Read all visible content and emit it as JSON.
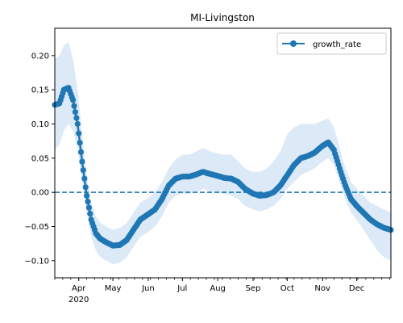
{
  "chart_data": {
    "type": "line",
    "title": "MI-Livingston",
    "xlabel": "",
    "ylabel": "",
    "legend": {
      "position": "top-right",
      "entries": [
        "growth_rate"
      ]
    },
    "grid": false,
    "xlim": [
      "2020-03-11",
      "2020-12-31"
    ],
    "ylim": [
      -0.125,
      0.24
    ],
    "x_ticks": [
      {
        "date": "2020-04-01",
        "label": "Apr",
        "sublabel": "2020"
      },
      {
        "date": "2020-05-01",
        "label": "May"
      },
      {
        "date": "2020-06-01",
        "label": "Jun"
      },
      {
        "date": "2020-07-01",
        "label": "Jul"
      },
      {
        "date": "2020-08-01",
        "label": "Aug"
      },
      {
        "date": "2020-09-01",
        "label": "Sep"
      },
      {
        "date": "2020-10-01",
        "label": "Oct"
      },
      {
        "date": "2020-11-01",
        "label": "Nov"
      },
      {
        "date": "2020-12-01",
        "label": "Dec"
      }
    ],
    "y_ticks": [
      {
        "value": 0.2,
        "label": "0.20"
      },
      {
        "value": 0.15,
        "label": "0.15"
      },
      {
        "value": 0.1,
        "label": "0.10"
      },
      {
        "value": 0.05,
        "label": "0.05"
      },
      {
        "value": 0.0,
        "label": "0.00"
      },
      {
        "value": -0.05,
        "label": "−0.05"
      },
      {
        "value": -0.1,
        "label": "−0.10"
      }
    ],
    "reference_line": {
      "y": 0.0,
      "style": "dashed",
      "color": "#1f77b4"
    },
    "series": [
      {
        "name": "growth_rate",
        "color": "#1f77b4",
        "marker": "circle",
        "band_color": "#dce9f6",
        "points": [
          {
            "x": "2020-03-11",
            "y": 0.128,
            "lo": 0.062,
            "hi": 0.195
          },
          {
            "x": "2020-03-15",
            "y": 0.13,
            "lo": 0.07,
            "hi": 0.2
          },
          {
            "x": "2020-03-19",
            "y": 0.15,
            "lo": 0.09,
            "hi": 0.215
          },
          {
            "x": "2020-03-23",
            "y": 0.153,
            "lo": 0.1,
            "hi": 0.22
          },
          {
            "x": "2020-03-27",
            "y": 0.135,
            "lo": 0.09,
            "hi": 0.195
          },
          {
            "x": "2020-03-31",
            "y": 0.1,
            "lo": 0.065,
            "hi": 0.15
          },
          {
            "x": "2020-04-04",
            "y": 0.045,
            "lo": 0.015,
            "hi": 0.085
          },
          {
            "x": "2020-04-08",
            "y": -0.005,
            "lo": -0.03,
            "hi": 0.025
          },
          {
            "x": "2020-04-12",
            "y": -0.04,
            "lo": -0.065,
            "hi": -0.015
          },
          {
            "x": "2020-04-16",
            "y": -0.06,
            "lo": -0.085,
            "hi": -0.035
          },
          {
            "x": "2020-04-20",
            "y": -0.068,
            "lo": -0.095,
            "hi": -0.045
          },
          {
            "x": "2020-04-25",
            "y": -0.073,
            "lo": -0.1,
            "hi": -0.05
          },
          {
            "x": "2020-05-01",
            "y": -0.078,
            "lo": -0.105,
            "hi": -0.055
          },
          {
            "x": "2020-05-07",
            "y": -0.077,
            "lo": -0.103,
            "hi": -0.052
          },
          {
            "x": "2020-05-13",
            "y": -0.07,
            "lo": -0.095,
            "hi": -0.045
          },
          {
            "x": "2020-05-19",
            "y": -0.055,
            "lo": -0.08,
            "hi": -0.03
          },
          {
            "x": "2020-05-25",
            "y": -0.04,
            "lo": -0.065,
            "hi": -0.015
          },
          {
            "x": "2020-06-01",
            "y": -0.032,
            "lo": -0.058,
            "hi": -0.008
          },
          {
            "x": "2020-06-07",
            "y": -0.025,
            "lo": -0.05,
            "hi": 0.0
          },
          {
            "x": "2020-06-13",
            "y": -0.01,
            "lo": -0.035,
            "hi": 0.015
          },
          {
            "x": "2020-06-19",
            "y": 0.01,
            "lo": -0.015,
            "hi": 0.035
          },
          {
            "x": "2020-06-25",
            "y": 0.02,
            "lo": -0.005,
            "hi": 0.048
          },
          {
            "x": "2020-07-01",
            "y": 0.023,
            "lo": -0.002,
            "hi": 0.055
          },
          {
            "x": "2020-07-07",
            "y": 0.023,
            "lo": -0.002,
            "hi": 0.055
          },
          {
            "x": "2020-07-13",
            "y": 0.026,
            "lo": 0.0,
            "hi": 0.06
          },
          {
            "x": "2020-07-19",
            "y": 0.03,
            "lo": 0.005,
            "hi": 0.065
          },
          {
            "x": "2020-07-25",
            "y": 0.027,
            "lo": 0.002,
            "hi": 0.06
          },
          {
            "x": "2020-08-01",
            "y": 0.024,
            "lo": 0.0,
            "hi": 0.057
          },
          {
            "x": "2020-08-07",
            "y": 0.021,
            "lo": -0.003,
            "hi": 0.055
          },
          {
            "x": "2020-08-13",
            "y": 0.02,
            "lo": -0.005,
            "hi": 0.055
          },
          {
            "x": "2020-08-19",
            "y": 0.015,
            "lo": -0.01,
            "hi": 0.045
          },
          {
            "x": "2020-08-25",
            "y": 0.005,
            "lo": -0.02,
            "hi": 0.035
          },
          {
            "x": "2020-09-01",
            "y": -0.002,
            "lo": -0.025,
            "hi": 0.03
          },
          {
            "x": "2020-09-07",
            "y": -0.005,
            "lo": -0.028,
            "hi": 0.03
          },
          {
            "x": "2020-09-13",
            "y": -0.004,
            "lo": -0.025,
            "hi": 0.035
          },
          {
            "x": "2020-09-19",
            "y": 0.0,
            "lo": -0.02,
            "hi": 0.045
          },
          {
            "x": "2020-09-25",
            "y": 0.01,
            "lo": -0.01,
            "hi": 0.06
          },
          {
            "x": "2020-10-01",
            "y": 0.025,
            "lo": 0.005,
            "hi": 0.085
          },
          {
            "x": "2020-10-07",
            "y": 0.04,
            "lo": 0.015,
            "hi": 0.095
          },
          {
            "x": "2020-10-13",
            "y": 0.05,
            "lo": 0.025,
            "hi": 0.1
          },
          {
            "x": "2020-10-19",
            "y": 0.053,
            "lo": 0.03,
            "hi": 0.1
          },
          {
            "x": "2020-10-25",
            "y": 0.058,
            "lo": 0.035,
            "hi": 0.1
          },
          {
            "x": "2020-11-01",
            "y": 0.068,
            "lo": 0.045,
            "hi": 0.105
          },
          {
            "x": "2020-11-06",
            "y": 0.073,
            "lo": 0.05,
            "hi": 0.108
          },
          {
            "x": "2020-11-11",
            "y": 0.062,
            "lo": 0.04,
            "hi": 0.095
          },
          {
            "x": "2020-11-16",
            "y": 0.035,
            "lo": 0.015,
            "hi": 0.065
          },
          {
            "x": "2020-11-21",
            "y": 0.01,
            "lo": -0.01,
            "hi": 0.035
          },
          {
            "x": "2020-11-26",
            "y": -0.01,
            "lo": -0.03,
            "hi": 0.015
          },
          {
            "x": "2020-12-01",
            "y": -0.02,
            "lo": -0.04,
            "hi": 0.005
          },
          {
            "x": "2020-12-07",
            "y": -0.03,
            "lo": -0.055,
            "hi": -0.005
          },
          {
            "x": "2020-12-13",
            "y": -0.04,
            "lo": -0.07,
            "hi": -0.015
          },
          {
            "x": "2020-12-19",
            "y": -0.047,
            "lo": -0.085,
            "hi": -0.02
          },
          {
            "x": "2020-12-25",
            "y": -0.052,
            "lo": -0.095,
            "hi": -0.025
          },
          {
            "x": "2020-12-31",
            "y": -0.055,
            "lo": -0.1,
            "hi": -0.03
          }
        ]
      }
    ]
  }
}
